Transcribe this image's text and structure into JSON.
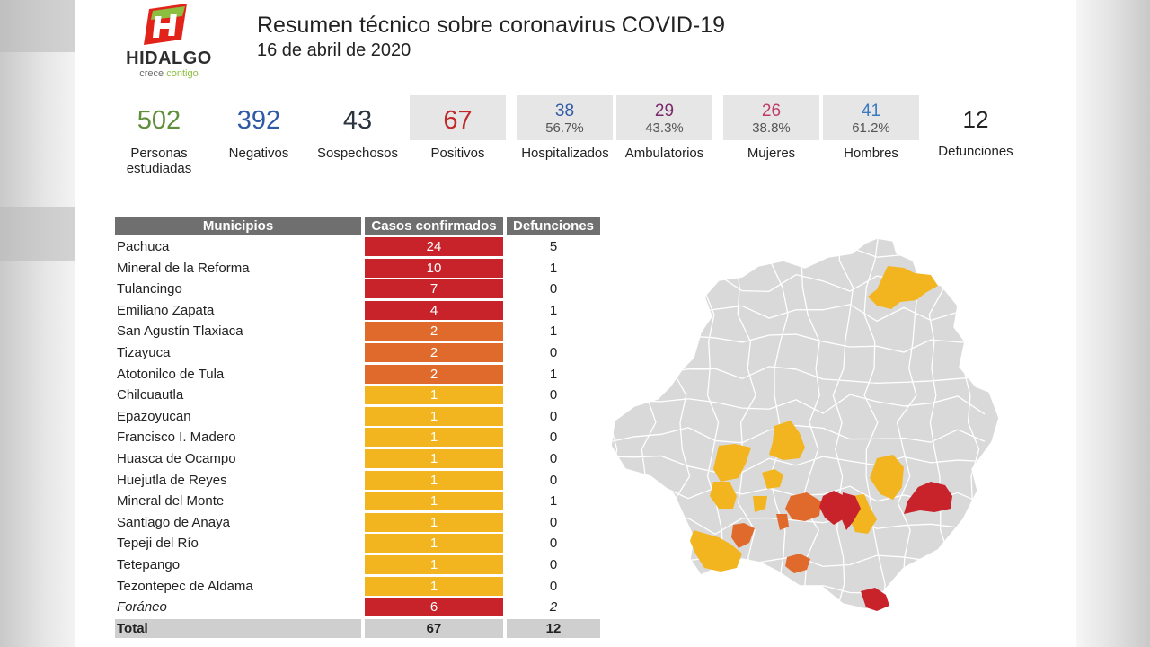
{
  "logo": {
    "word": "HIDALGO",
    "tag_a": "crece",
    "tag_b": "contigo"
  },
  "header": {
    "title": "Resumen técnico sobre coronavirus COVID-19",
    "date": "16 de abril de 2020"
  },
  "stats": [
    {
      "value": "502",
      "label": "Personas estudiadas",
      "color": "#5f8f3a"
    },
    {
      "value": "392",
      "label": "Negativos",
      "color": "#2f5aa6"
    },
    {
      "value": "43",
      "label": "Sospechosos",
      "color": "#2c3440"
    },
    {
      "value": "67",
      "label": "Positivos",
      "color": "#c0282a"
    },
    {
      "value": "38",
      "pct": "56.7%",
      "label": "Hospitalizados",
      "color": "#2f5aa6"
    },
    {
      "value": "29",
      "pct": "43.3%",
      "label": "Ambulatorios",
      "color": "#7a2a6a"
    },
    {
      "value": "26",
      "pct": "38.8%",
      "label": "Mujeres",
      "color": "#c03a6a"
    },
    {
      "value": "41",
      "pct": "61.2%",
      "label": "Hombres",
      "color": "#3a7ac0"
    },
    {
      "value": "12",
      "label": "Defunciones",
      "color": "#222222"
    }
  ],
  "table": {
    "headers": [
      "Municipios",
      "Casos confirmados",
      "Defunciones"
    ],
    "rows": [
      {
        "municipio": "Pachuca",
        "casos": "24",
        "defunciones": "5",
        "color": "#c8232a"
      },
      {
        "municipio": "Mineral de la Reforma",
        "casos": "10",
        "defunciones": "1",
        "color": "#c8232a"
      },
      {
        "municipio": "Tulancingo",
        "casos": "7",
        "defunciones": "0",
        "color": "#c8232a"
      },
      {
        "municipio": "Emiliano Zapata",
        "casos": "4",
        "defunciones": "1",
        "color": "#c8232a"
      },
      {
        "municipio": "San Agustín Tlaxiaca",
        "casos": "2",
        "defunciones": "1",
        "color": "#e06a2c"
      },
      {
        "municipio": "Tizayuca",
        "casos": "2",
        "defunciones": "0",
        "color": "#e06a2c"
      },
      {
        "municipio": "Atotonilco de Tula",
        "casos": "2",
        "defunciones": "1",
        "color": "#e06a2c"
      },
      {
        "municipio": "Chilcuautla",
        "casos": "1",
        "defunciones": "0",
        "color": "#f2b51f"
      },
      {
        "municipio": "Epazoyucan",
        "casos": "1",
        "defunciones": "0",
        "color": "#f2b51f"
      },
      {
        "municipio": "Francisco I. Madero",
        "casos": "1",
        "defunciones": "0",
        "color": "#f2b51f"
      },
      {
        "municipio": "Huasca de Ocampo",
        "casos": "1",
        "defunciones": "0",
        "color": "#f2b51f"
      },
      {
        "municipio": "Huejutla de Reyes",
        "casos": "1",
        "defunciones": "0",
        "color": "#f2b51f"
      },
      {
        "municipio": "Mineral del Monte",
        "casos": "1",
        "defunciones": "1",
        "color": "#f2b51f"
      },
      {
        "municipio": "Santiago de Anaya",
        "casos": "1",
        "defunciones": "0",
        "color": "#f2b51f"
      },
      {
        "municipio": "Tepeji del Río",
        "casos": "1",
        "defunciones": "0",
        "color": "#f2b51f"
      },
      {
        "municipio": "Tetepango",
        "casos": "1",
        "defunciones": "0",
        "color": "#f2b51f"
      },
      {
        "municipio": "Tezontepec de Aldama",
        "casos": "1",
        "defunciones": "0",
        "color": "#f2b51f"
      },
      {
        "municipio": "Foráneo",
        "casos": "6",
        "defunciones": "2",
        "color": "#c8232a",
        "italic": true
      }
    ],
    "total": {
      "label": "Total",
      "casos": "67",
      "defunciones": "12"
    }
  },
  "map": {
    "base_color": "#d9d9d9",
    "border_color": "#ffffff"
  }
}
